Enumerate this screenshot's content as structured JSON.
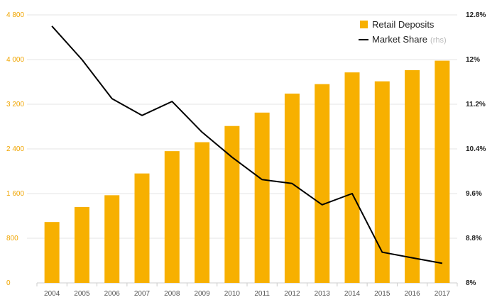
{
  "chart_data": {
    "type": "bar",
    "title": "",
    "categories": [
      "2004",
      "2005",
      "2006",
      "2007",
      "2008",
      "2009",
      "2010",
      "2011",
      "2012",
      "2013",
      "2014",
      "2015",
      "2016",
      "2017"
    ],
    "series": [
      {
        "name": "Retail Deposits",
        "type": "bar",
        "axis": "left",
        "color": "#f7b000",
        "values": [
          1090,
          1360,
          1570,
          1960,
          2360,
          2520,
          2810,
          3050,
          3390,
          3560,
          3770,
          3610,
          3810,
          3980
        ]
      },
      {
        "name": "Market Share",
        "name_suffix": "(rhs)",
        "type": "line",
        "axis": "right",
        "color": "#000000",
        "values": [
          12.6,
          12.0,
          11.3,
          11.0,
          11.25,
          10.7,
          10.25,
          9.85,
          9.78,
          9.4,
          9.6,
          8.55,
          8.45,
          8.35
        ]
      }
    ],
    "y_left": {
      "ylim": [
        0,
        4800
      ],
      "ticks": [
        0,
        800,
        1600,
        2400,
        3200,
        4000,
        4800
      ],
      "tick_labels": [
        "0",
        "800",
        "1 600",
        "2 400",
        "3 200",
        "4 000",
        "4 800"
      ],
      "color": "#f0a500"
    },
    "y_right": {
      "ylim": [
        8,
        12.8
      ],
      "ticks": [
        8,
        8.8,
        9.6,
        10.4,
        11.2,
        12,
        12.8
      ],
      "tick_labels": [
        "8%",
        "8.8%",
        "9.6%",
        "10.4%",
        "11.2%",
        "12%",
        "12.8%"
      ],
      "color": "#222222"
    },
    "legend_position": "top-right",
    "grid": true
  }
}
